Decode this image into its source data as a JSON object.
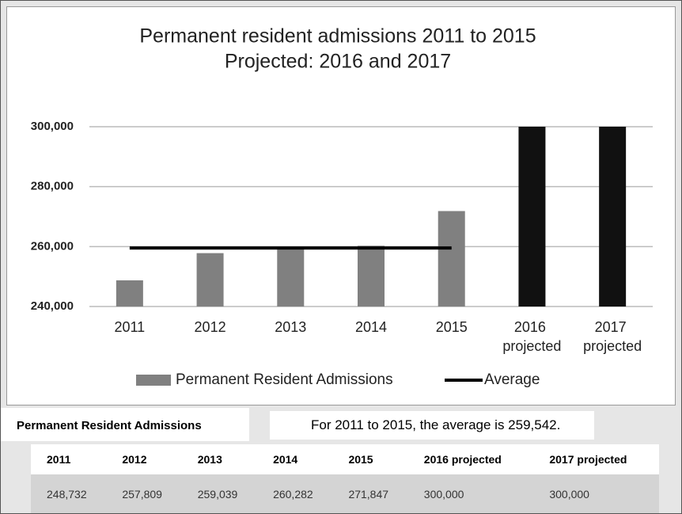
{
  "chart_data": {
    "type": "bar",
    "title": "Permanent resident admissions 2011 to 2015",
    "subtitle": "Projected: 2016 and 2017",
    "categories": [
      "2011",
      "2012",
      "2013",
      "2014",
      "2015",
      "2016 projected",
      "2017 projected"
    ],
    "series": [
      {
        "name": "Permanent Resident Admissions",
        "type": "bar",
        "color": "#808080",
        "colors": [
          "#808080",
          "#808080",
          "#808080",
          "#808080",
          "#808080",
          "#111111",
          "#111111"
        ],
        "values": [
          248732,
          257809,
          259039,
          260282,
          271847,
          300000,
          300000
        ]
      },
      {
        "name": "Average",
        "type": "line",
        "color": "#000000",
        "values": [
          259542,
          259542,
          259542,
          259542,
          259542,
          null,
          null
        ]
      }
    ],
    "ylim": [
      240000,
      300000
    ],
    "yticks": [
      {
        "value": 240000,
        "label": "240,000"
      },
      {
        "value": 260000,
        "label": "260,000"
      },
      {
        "value": 280000,
        "label": "280,000"
      },
      {
        "value": 300000,
        "label": "300,000"
      }
    ],
    "grid": true,
    "legend": "bottom"
  },
  "table": {
    "title": "Permanent Resident Admissions",
    "note": "For 2011 to 2015, the average is 259,542.",
    "header": [
      "2011",
      "2012",
      "2013",
      "2014",
      "2015",
      "2016 projected",
      "2017 projected"
    ],
    "rows": [
      [
        "248,732",
        "257,809",
        "259,039",
        "260,282",
        "271,847",
        "300,000",
        "300,000"
      ]
    ]
  }
}
